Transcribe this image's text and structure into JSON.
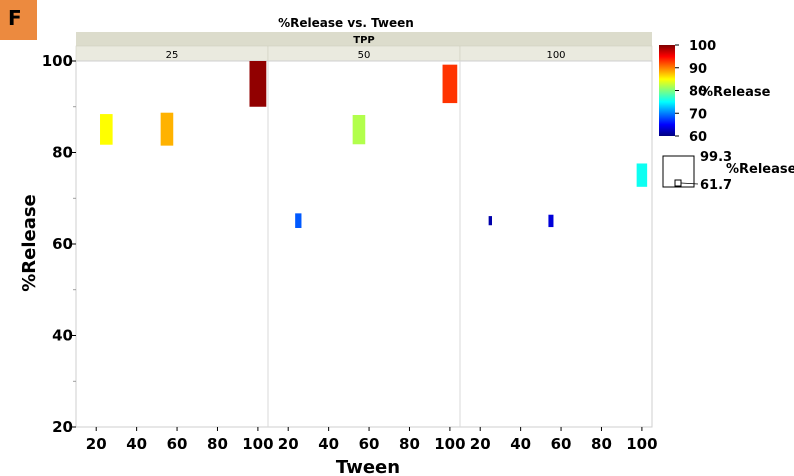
{
  "badge": "F",
  "chart_data": {
    "type": "bar",
    "title": "%Release vs. Tween",
    "facet_header": "TPP",
    "xlabel": "Tween",
    "ylabel": "%Release",
    "ylim": [
      20,
      100
    ],
    "yticks": [
      20,
      40,
      60,
      80,
      100
    ],
    "xlim": [
      10,
      105
    ],
    "xticks": [
      20,
      40,
      60,
      80,
      100
    ],
    "grid": false,
    "panels": [
      {
        "label": "25",
        "bars": [
          {
            "x": 25,
            "low": 81.7,
            "high": 88.4,
            "value": 85.0,
            "size": 3
          },
          {
            "x": 55,
            "low": 81.5,
            "high": 88.7,
            "value": 88.0,
            "size": 3
          },
          {
            "x": 100,
            "low": 90.0,
            "high": 100.0,
            "value": 99.3,
            "size": 4
          }
        ]
      },
      {
        "label": "50",
        "bars": [
          {
            "x": 25,
            "low": 63.5,
            "high": 66.7,
            "value": 68.5,
            "size": 1.5
          },
          {
            "x": 55,
            "low": 81.8,
            "high": 88.2,
            "value": 82.0,
            "size": 3
          },
          {
            "x": 100,
            "low": 90.8,
            "high": 99.2,
            "value": 93.0,
            "size": 3.5
          }
        ]
      },
      {
        "label": "100",
        "bars": [
          {
            "x": 25,
            "low": 64.1,
            "high": 66.1,
            "value": 61.7,
            "size": 0.8
          },
          {
            "x": 55,
            "low": 63.7,
            "high": 66.4,
            "value": 63.5,
            "size": 1.2
          },
          {
            "x": 100,
            "low": 72.5,
            "high": 77.6,
            "value": 75.5,
            "size": 2.5
          }
        ]
      }
    ],
    "color_legend": {
      "title": "%Release",
      "ticks": [
        100,
        90,
        80,
        70,
        60
      ],
      "range": [
        60,
        100
      ],
      "colors": [
        "#00007f",
        "#0000ff",
        "#007fff",
        "#00ffff",
        "#7fff7f",
        "#ffff00",
        "#ff7f00",
        "#ff0000",
        "#7f0000"
      ]
    },
    "size_legend": {
      "title": "%Release",
      "max_label": "99.3",
      "min_label": "61.7"
    }
  }
}
